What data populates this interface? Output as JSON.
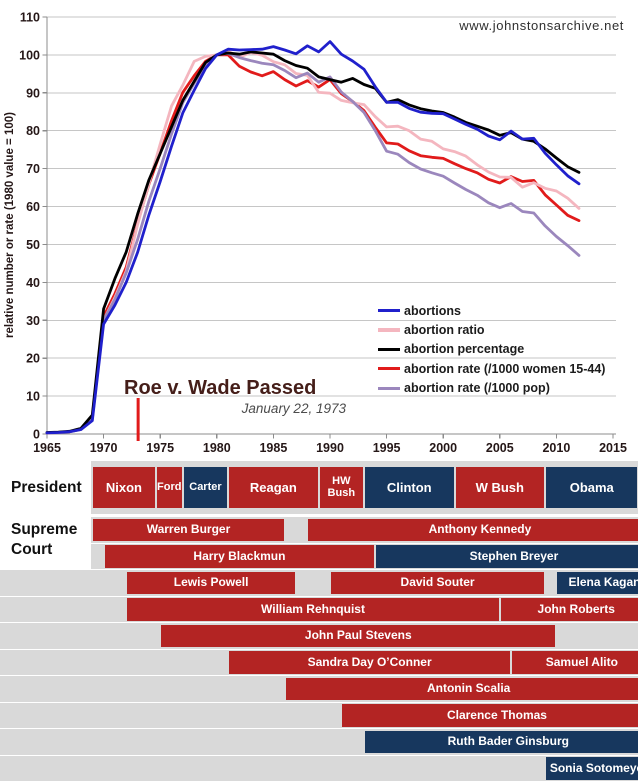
{
  "site": "www.johnstonsarchive.net",
  "chart_data": {
    "type": "line",
    "title": "",
    "xlabel": "",
    "ylabel": "relative number or rate (1980 value = 100)",
    "xlim": [
      1965,
      2015
    ],
    "ylim": [
      0,
      110
    ],
    "x_ticks": [
      1965,
      1970,
      1975,
      1980,
      1985,
      1990,
      1995,
      2000,
      2005,
      2010,
      2015
    ],
    "y_ticks": [
      0,
      10,
      20,
      30,
      40,
      50,
      60,
      70,
      80,
      90,
      100,
      110
    ],
    "grid": true,
    "legend_position": "center-right",
    "years": [
      1965,
      1966,
      1967,
      1968,
      1969,
      1970,
      1971,
      1972,
      1973,
      1974,
      1975,
      1976,
      1977,
      1978,
      1979,
      1980,
      1981,
      1982,
      1983,
      1984,
      1985,
      1986,
      1987,
      1988,
      1989,
      1990,
      1991,
      1992,
      1993,
      1994,
      1995,
      1996,
      1997,
      1998,
      1999,
      2000,
      2001,
      2002,
      2003,
      2004,
      2005,
      2006,
      2007,
      2008,
      2009,
      2010,
      2011,
      2012
    ],
    "series": [
      {
        "name": "abortions",
        "color": "#2020cc",
        "values": [
          0.3,
          0.4,
          0.6,
          1.2,
          3.5,
          29,
          34,
          40,
          47.9,
          57.8,
          66.6,
          75.9,
          84.7,
          90.7,
          96.4,
          100,
          101.5,
          101.3,
          101.4,
          101.5,
          102.2,
          101.3,
          100.3,
          102.4,
          100.8,
          103.5,
          100.2,
          98.4,
          96.2,
          91.6,
          87.5,
          87.5,
          85.9,
          84.9,
          84.6,
          84.5,
          83.1,
          81.7,
          80.4,
          78.6,
          77.6,
          79.9,
          77.8,
          78,
          74.1,
          71,
          68.1,
          66
        ]
      },
      {
        "name": "abortion ratio",
        "color": "#f4b6bf",
        "values": [
          0.3,
          0.4,
          0.6,
          1.3,
          4,
          30,
          36,
          43,
          55.2,
          66.1,
          76.5,
          86.5,
          92,
          98.3,
          99.6,
          100,
          101,
          99.4,
          100.6,
          99.9,
          98.2,
          97.4,
          95.1,
          94.6,
          90.1,
          89.9,
          88,
          87.4,
          86.9,
          83.7,
          81,
          81.2,
          80,
          77.8,
          77.2,
          75.2,
          74.5,
          73.3,
          71,
          69.1,
          67.8,
          67.7,
          65.1,
          66.3,
          64.8,
          64.1,
          62.2,
          59.5
        ]
      },
      {
        "name": "abortion percentage",
        "color": "#000000",
        "values": [
          0.4,
          0.5,
          0.7,
          1.5,
          5,
          33,
          41,
          48,
          58,
          67,
          74,
          81,
          88,
          93,
          98,
          100,
          100.5,
          100.2,
          100.8,
          100.5,
          100.2,
          98.5,
          97.2,
          96.5,
          94.2,
          93.5,
          92.8,
          93.8,
          92.2,
          91.2,
          87.5,
          88.2,
          86.8,
          85.8,
          85.2,
          84.8,
          83.6,
          82.2,
          81.2,
          80.2,
          78.8,
          79.5,
          77.8,
          77.2,
          75.2,
          72.8,
          70.5,
          69
        ]
      },
      {
        "name": "abortion rate (/1000 women 15-44)",
        "color": "#e11b1b",
        "values": [
          0.3,
          0.4,
          0.6,
          1.3,
          4.5,
          31,
          37,
          44,
          55.6,
          65.9,
          74.1,
          82.6,
          90.1,
          94.5,
          98.3,
          100,
          100,
          97,
          95.5,
          94.5,
          95.6,
          93.5,
          91.8,
          93.2,
          91.5,
          93.5,
          89.8,
          87.7,
          85.3,
          80.9,
          76.8,
          76.5,
          74.7,
          73.4,
          73,
          72.7,
          71.3,
          70,
          68.9,
          67.2,
          66.2,
          67.9,
          66.6,
          66.9,
          63.1,
          60.4,
          57.7,
          56.3
        ]
      },
      {
        "name": "abortion rate (/1000 pop)",
        "color": "#9b87bd",
        "values": [
          0.3,
          0.4,
          0.6,
          1.2,
          4,
          30,
          35.5,
          42.5,
          51.3,
          61.4,
          70,
          79.1,
          87.4,
          92.5,
          97.2,
          100,
          100.4,
          99.3,
          98.5,
          97.8,
          97.4,
          95.9,
          94,
          95.2,
          92.8,
          94.2,
          90.2,
          87.7,
          84.8,
          80,
          74.6,
          73.8,
          71.6,
          69.9,
          68.9,
          68,
          66.2,
          64.5,
          63,
          61,
          59.7,
          60.8,
          58.7,
          58.3,
          54.9,
          52.1,
          49.7,
          47.1
        ]
      }
    ],
    "annotation": {
      "title": "Roe v. Wade Passed",
      "subtitle": "January 22, 1973",
      "year": 1973.05
    }
  },
  "timeline": {
    "president_label": "President",
    "supreme_court_label_1": "Supreme",
    "supreme_court_label_2": "Court",
    "colors": {
      "republican": "#b32423",
      "democrat": "#17375e"
    },
    "presidents": [
      {
        "name": "Nixon",
        "start": 1969,
        "end": 1974.6,
        "party": "republican"
      },
      {
        "name": "Ford",
        "start": 1974.6,
        "end": 1977,
        "party": "republican"
      },
      {
        "name": "Carter",
        "start": 1977,
        "end": 1981,
        "party": "democrat"
      },
      {
        "name": "Reagan",
        "start": 1981,
        "end": 1989,
        "party": "republican"
      },
      {
        "name": "HW Bush",
        "start": 1989,
        "end": 1993,
        "party": "republican"
      },
      {
        "name": "Clinton",
        "start": 1993,
        "end": 2001,
        "party": "democrat"
      },
      {
        "name": "W Bush",
        "start": 2001,
        "end": 2009,
        "party": "republican"
      },
      {
        "name": "Obama",
        "start": 2009,
        "end": 2017.25,
        "party": "democrat"
      }
    ],
    "justice_rows": [
      [
        {
          "name": "Warren Burger",
          "start": 1969,
          "end": 1986,
          "party": "republican"
        },
        {
          "name": "Anthony Kennedy",
          "start": 1988,
          "end": 2018.5,
          "party": "republican"
        }
      ],
      [
        {
          "name": "Harry Blackmun",
          "start": 1970,
          "end": 1994,
          "party": "republican"
        },
        {
          "name": "Stephen Breyer",
          "start": 1994,
          "end": 2018.5,
          "party": "democrat"
        }
      ],
      [
        {
          "name": "Lewis Powell",
          "start": 1972,
          "end": 1987,
          "party": "republican"
        },
        {
          "name": "David Souter",
          "start": 1990,
          "end": 2009,
          "party": "republican"
        },
        {
          "name": "Elena Kagan",
          "start": 2010,
          "end": 2018.5,
          "party": "democrat"
        }
      ],
      [
        {
          "name": "William Rehnquist",
          "start": 1972,
          "end": 2005,
          "party": "republican"
        },
        {
          "name": "John Roberts",
          "start": 2005,
          "end": 2018.5,
          "party": "republican"
        }
      ],
      [
        {
          "name": "John Paul Stevens",
          "start": 1975,
          "end": 2010,
          "party": "republican"
        }
      ],
      [
        {
          "name": "Sandra Day O’Conner",
          "start": 1981,
          "end": 2006,
          "party": "republican"
        },
        {
          "name": "Samuel Alito",
          "start": 2006,
          "end": 2018.5,
          "party": "republican"
        }
      ],
      [
        {
          "name": "Antonin Scalia",
          "start": 1986,
          "end": 2018.5,
          "party": "republican"
        }
      ],
      [
        {
          "name": "Clarence Thomas",
          "start": 1991,
          "end": 2018.5,
          "party": "republican"
        }
      ],
      [
        {
          "name": "Ruth Bader Ginsburg",
          "start": 1993,
          "end": 2018.5,
          "party": "democrat"
        }
      ],
      [
        {
          "name": "Sonia Sotomeyer",
          "start": 2009,
          "end": 2018.5,
          "party": "democrat"
        }
      ]
    ]
  }
}
